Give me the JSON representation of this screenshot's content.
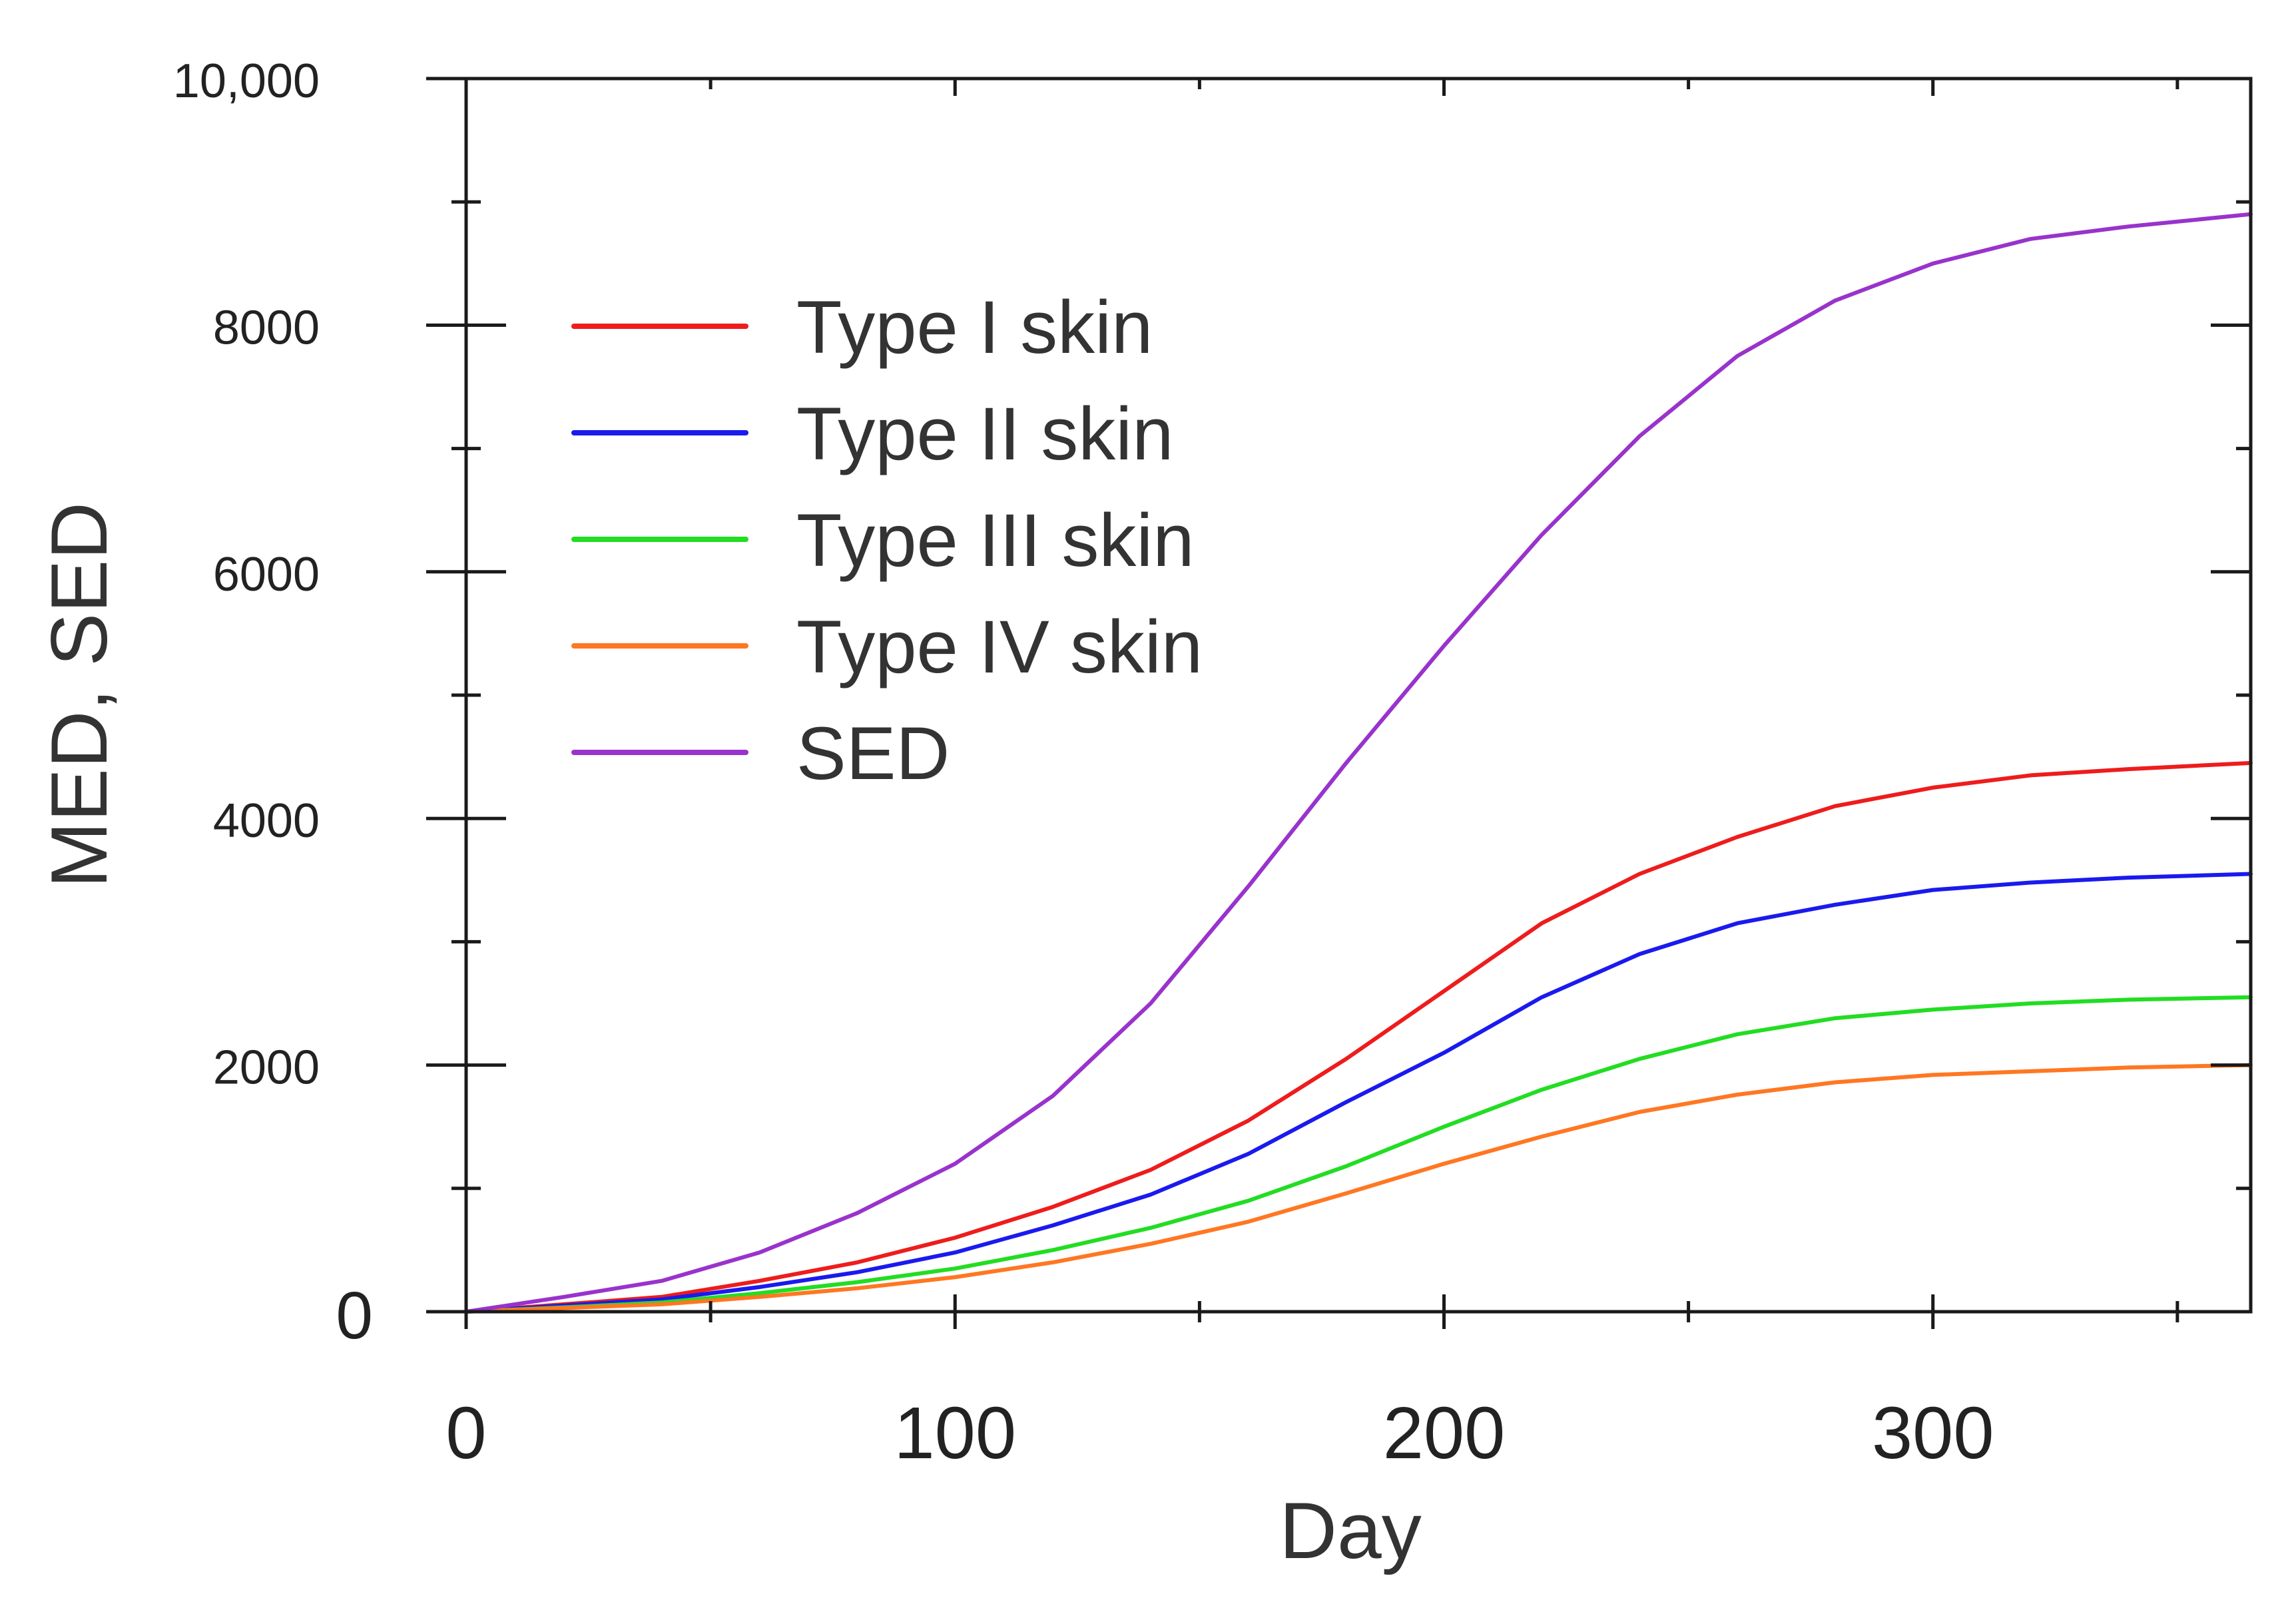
{
  "chart_data": {
    "type": "line",
    "title": "",
    "xlabel": "Day",
    "ylabel": "MED, SED",
    "xlim": [
      0,
      365
    ],
    "ylim": [
      0,
      10000
    ],
    "x_ticks": [
      0,
      100,
      200,
      300
    ],
    "x_tick_labels": [
      "0",
      "100",
      "200",
      "300"
    ],
    "y_ticks": [
      0,
      2000,
      4000,
      6000,
      8000,
      10000
    ],
    "y_tick_labels": [
      "0",
      "2000",
      "4000",
      "6000",
      "8000",
      "10,000"
    ],
    "legend_position": "upper-left",
    "grid": false,
    "x": [
      0,
      20,
      40,
      60,
      80,
      100,
      120,
      140,
      160,
      180,
      200,
      220,
      240,
      260,
      280,
      300,
      320,
      340,
      365
    ],
    "series": [
      {
        "name": "Type I skin",
        "color": "#ee1c1c",
        "values": [
          0,
          60,
          120,
          250,
          400,
          600,
          850,
          1150,
          1550,
          2050,
          2600,
          3150,
          3550,
          3850,
          4100,
          4250,
          4350,
          4400,
          4450
        ]
      },
      {
        "name": "Type II skin",
        "color": "#1a1aee",
        "values": [
          0,
          50,
          100,
          200,
          320,
          480,
          700,
          950,
          1280,
          1700,
          2100,
          2550,
          2900,
          3150,
          3300,
          3420,
          3480,
          3520,
          3550
        ]
      },
      {
        "name": "Type III skin",
        "color": "#22dd22",
        "values": [
          0,
          35,
          75,
          150,
          240,
          350,
          500,
          680,
          900,
          1180,
          1500,
          1800,
          2050,
          2250,
          2380,
          2450,
          2500,
          2530,
          2550
        ]
      },
      {
        "name": "Type IV skin",
        "color": "#ff7722",
        "values": [
          0,
          30,
          60,
          120,
          190,
          280,
          400,
          550,
          730,
          960,
          1200,
          1420,
          1620,
          1760,
          1860,
          1920,
          1950,
          1980,
          2000
        ]
      },
      {
        "name": "SED",
        "color": "#9933cc",
        "values": [
          0,
          120,
          250,
          480,
          800,
          1200,
          1750,
          2500,
          3450,
          4450,
          5400,
          6300,
          7100,
          7750,
          8200,
          8500,
          8700,
          8800,
          8900
        ]
      }
    ]
  }
}
